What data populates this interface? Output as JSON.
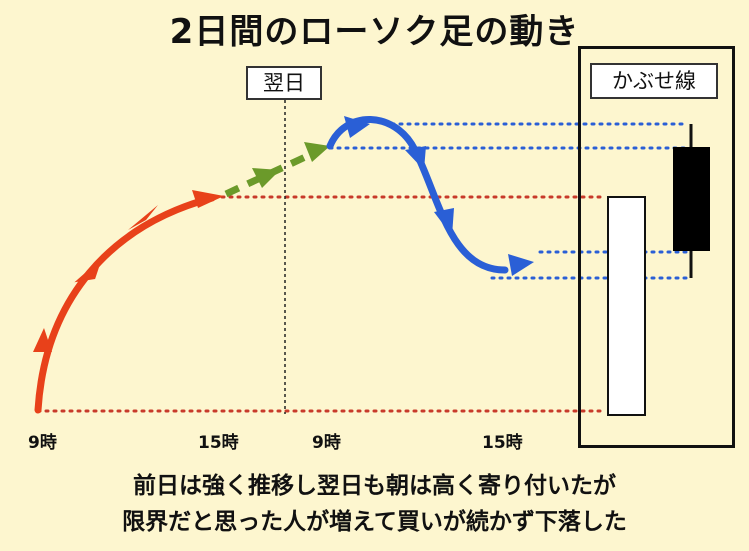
{
  "title": "2日間のローソク足の動き",
  "next_day_label": "翌日",
  "kabuse_label": "かぶせ線",
  "time_labels": [
    "9時",
    "15時",
    "9時",
    "15時"
  ],
  "caption_lines": [
    "前日は強く推移し翌日も朝は高く寄り付いたが",
    "限界だと思った人が増えて買いが続かず下落した"
  ],
  "colors": {
    "background": "#fdf6cf",
    "day1_path": "#e8411a",
    "gap_path": "#6b9a2a",
    "day2_path": "#2a5fd6",
    "day1_guides": "#c83a2a",
    "day2_guides": "#2a5fd6",
    "bullish_candle": "#ffffff",
    "bearish_candle": "#000000"
  }
}
